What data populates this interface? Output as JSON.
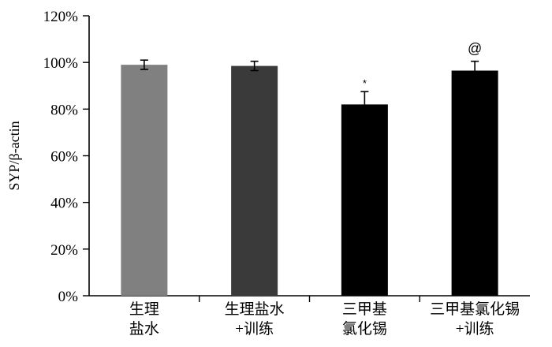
{
  "chart_data": {
    "type": "bar",
    "ylabel": "SYP/β-actin",
    "xlabel": "",
    "ylim": [
      0,
      120
    ],
    "y_ticks": [
      0,
      20,
      40,
      60,
      80,
      100,
      120
    ],
    "y_tick_labels": [
      "0%",
      "20%",
      "40%",
      "60%",
      "80%",
      "100%",
      "120%"
    ],
    "categories": [
      [
        "生理",
        "盐水"
      ],
      [
        "生理盐水",
        "+训练"
      ],
      [
        "三甲基",
        "氯化锡"
      ],
      [
        "三甲基氯化锡",
        "+训练"
      ]
    ],
    "values": [
      99,
      98.5,
      82,
      96.5
    ],
    "errors": [
      2,
      2,
      5.5,
      4
    ],
    "error_style": [
      "both",
      "both",
      "upper",
      "upper"
    ],
    "annotations": [
      "",
      "",
      "*",
      "@"
    ],
    "colors": [
      "#808080",
      "#3a3a3a",
      "#000000",
      "#000000"
    ],
    "grid": false,
    "legend": "none"
  }
}
